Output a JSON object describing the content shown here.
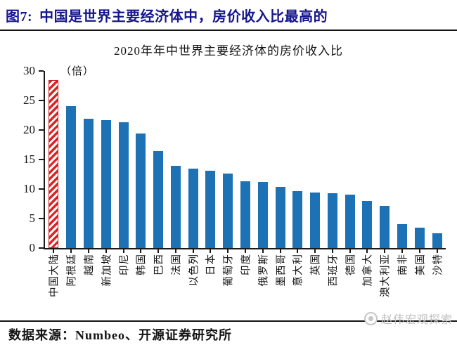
{
  "header": {
    "figure_label": "图7:",
    "title": "中国是世界主要经济体中，房价收入比最高的"
  },
  "chart_data": {
    "type": "bar",
    "title": "2020年年中世界主要经济体的房价收入比",
    "unit_label": "（倍）",
    "xlabel": "",
    "ylabel": "倍",
    "ylim": [
      0,
      30
    ],
    "yticks": [
      0,
      5,
      10,
      15,
      20,
      25,
      30
    ],
    "grid": false,
    "legend": "none",
    "categories": [
      "中国大陆",
      "阿根廷",
      "越南",
      "新加坡",
      "印尼",
      "韩国",
      "巴西",
      "法国",
      "以色列",
      "日本",
      "葡萄牙",
      "印度",
      "俄罗斯",
      "墨西哥",
      "意大利",
      "英国",
      "西班牙",
      "德国",
      "加拿大",
      "澳大利亚",
      "南非",
      "美国",
      "沙特"
    ],
    "values": [
      28.5,
      24.0,
      21.9,
      21.7,
      21.3,
      19.4,
      16.4,
      13.9,
      13.4,
      13.1,
      12.6,
      11.3,
      11.2,
      10.4,
      9.6,
      9.4,
      9.3,
      9.1,
      8.0,
      7.2,
      4.0,
      3.4,
      2.5
    ],
    "highlight_index": 0,
    "bar_color": "#1c72b4",
    "highlight_color": "#d92525",
    "highlight_style": "diagonal-hatch"
  },
  "footer": {
    "source": "数据来源：Numbeo、开源证券研究所"
  },
  "watermark": {
    "text": "赵伟宏观探索",
    "logo": "circle-seal-icon",
    "color": "#bdbdbd"
  },
  "colors": {
    "header_text": "#15158c",
    "axis_and_text": "#141414",
    "rule": "#151515"
  }
}
